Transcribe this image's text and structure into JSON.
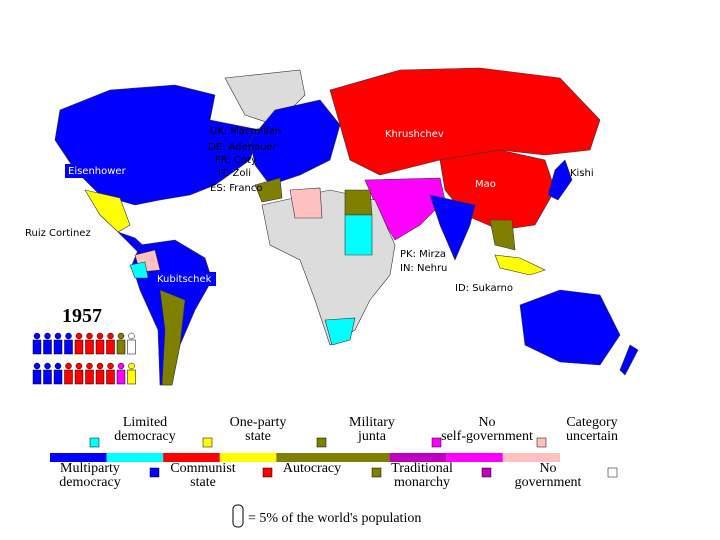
{
  "map": {
    "labels": [
      "UK: Macmillan",
      "DE: Adenauer",
      "FR: Coty",
      "IT: Zoli",
      "ES: Franco",
      "Eisenhower",
      "Khrushchev",
      "Mao",
      "Kishi",
      "Ruiz Cortinez",
      "Kubitschek",
      "PK: Mirza",
      "IN: Nehru",
      "ID: Sukarno"
    ],
    "year": "1957",
    "icons": [
      [
        "#0000ff",
        "#0000ff",
        "#0000ff",
        "#0000ff",
        "#ff0000",
        "#ff0000",
        "#ff0000",
        "#ff0000",
        "#808000",
        "#ffffff"
      ],
      [
        "#0000ff",
        "#0000ff",
        "#0000ff",
        "#ff0000",
        "#ff0000",
        "#ff0000",
        "#ff0000",
        "#ff0000",
        "#ff00ff",
        "#ffff00"
      ]
    ],
    "legend": {
      "items": [
        {
          "label": "Limited democracy",
          "color": "#00ffff"
        },
        {
          "label": "One-party state",
          "color": "#ffff00"
        },
        {
          "label": "Military junta",
          "color": "#808000"
        },
        {
          "label": "No self-government",
          "color": "#ff00ff"
        },
        {
          "label": "Category uncertain",
          "color": "#ffc0c0"
        },
        {
          "label": "Multiparty democracy",
          "color": "#0000ff"
        },
        {
          "label": "Communist state",
          "color": "#ff0000"
        },
        {
          "label": "Autocracy",
          "color": "#808000"
        },
        {
          "label": "Traditional monarchy",
          "color": "#c000c0"
        },
        {
          "label": "No government",
          "color": "#ffffff"
        }
      ],
      "icon_note": "= 5% of the world's population"
    }
  }
}
